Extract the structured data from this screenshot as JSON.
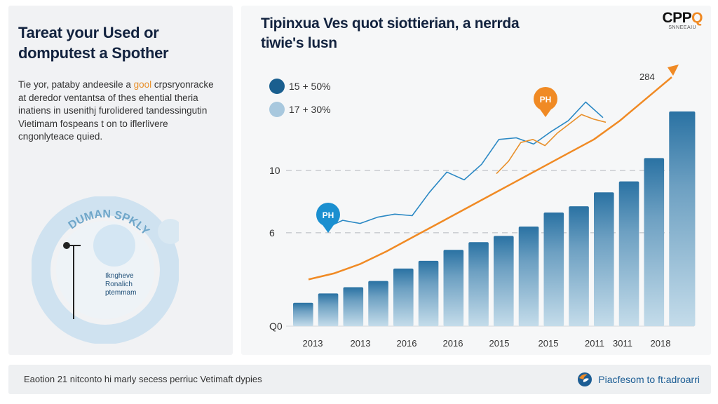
{
  "left_panel": {
    "title": "Tareat your Used or domputest a Spother",
    "body_prefix": "Tie yor, pataby andeesile a ",
    "body_highlight": "gool",
    "body_rest": " crpsryonracke at deredor ventantsa of thes ehential theria inatiens in usenithj furolidered tandessingutin Vietimam fospeans t on to iflerlivere cngonlyteace quied.",
    "illustration": {
      "ring_top_text": "DUMAN SPKLY",
      "ring_label_lines": [
        "Ikngheve",
        "Ronalich",
        "ptemmam"
      ]
    }
  },
  "right_panel": {
    "title": "Tipinxua Ves quot siottierian, a nerrda tiwie's lusn",
    "logo": {
      "brand_prefix": "CPP",
      "brand_accent": "Q",
      "subtitle": "SNNEEAIU"
    },
    "legend": [
      {
        "label": "15 + 50%",
        "color": "#1a5f8f"
      },
      {
        "label": "17 + 30%",
        "color": "#a8c8de"
      }
    ]
  },
  "chart_data": {
    "type": "bar",
    "title": "Tipinxua Ves quot siottierian, a nerrda tiwie's lusn",
    "xlabel": "",
    "ylabel": "",
    "ylim": [
      0,
      16
    ],
    "yticks": [
      {
        "value": 0,
        "label": "Q0"
      },
      {
        "value": 6,
        "label": "6"
      },
      {
        "value": 10,
        "label": "10"
      }
    ],
    "gridlines": [
      6,
      10
    ],
    "x_tick_labels": [
      "2013",
      "2013",
      "2016",
      "2016",
      "2015",
      "2015",
      "2011",
      "3011",
      "2018"
    ],
    "bars": [
      1.5,
      2.1,
      2.5,
      2.9,
      3.7,
      4.2,
      4.9,
      5.4,
      5.8,
      6.4,
      7.3,
      7.7,
      8.6,
      9.3,
      10.8,
      13.8
    ],
    "series": [
      {
        "name": "trend",
        "type": "line",
        "color": "#f08a24",
        "values": [
          3.0,
          3.4,
          4.0,
          4.8,
          5.7,
          6.6,
          7.5,
          8.4,
          9.3,
          10.2,
          11.1,
          12.0,
          13.2,
          14.6,
          16.0
        ]
      },
      {
        "name": "15 + 50%",
        "type": "line",
        "color": "#2a88c4",
        "values": [
          6.3,
          6.8,
          6.6,
          7.0,
          7.2,
          7.1,
          8.6,
          9.9,
          9.4,
          10.4,
          12.0,
          12.1,
          11.7,
          12.5,
          13.2,
          14.4,
          13.4
        ]
      },
      {
        "name": "17 + 30%",
        "type": "line",
        "color": "#e8902b",
        "values": [
          9.8,
          10.6,
          11.8,
          12.0,
          11.6,
          12.4,
          13.0,
          13.6,
          13.3,
          13.1
        ]
      }
    ],
    "annotations": [
      {
        "text": "284",
        "type": "label",
        "near": "arrow-tip"
      },
      {
        "text": "PH",
        "type": "pin",
        "color": "#1a8fd0"
      },
      {
        "text": "PH",
        "type": "pin",
        "color": "#f08a24"
      }
    ],
    "legend_position": "top-left",
    "grid": true
  },
  "footer": {
    "text": "Eaotion 21 nitconto hi marly secess perriuc Vetimaft dypies",
    "link_label": "Piacfesom to ft:adroarri"
  }
}
